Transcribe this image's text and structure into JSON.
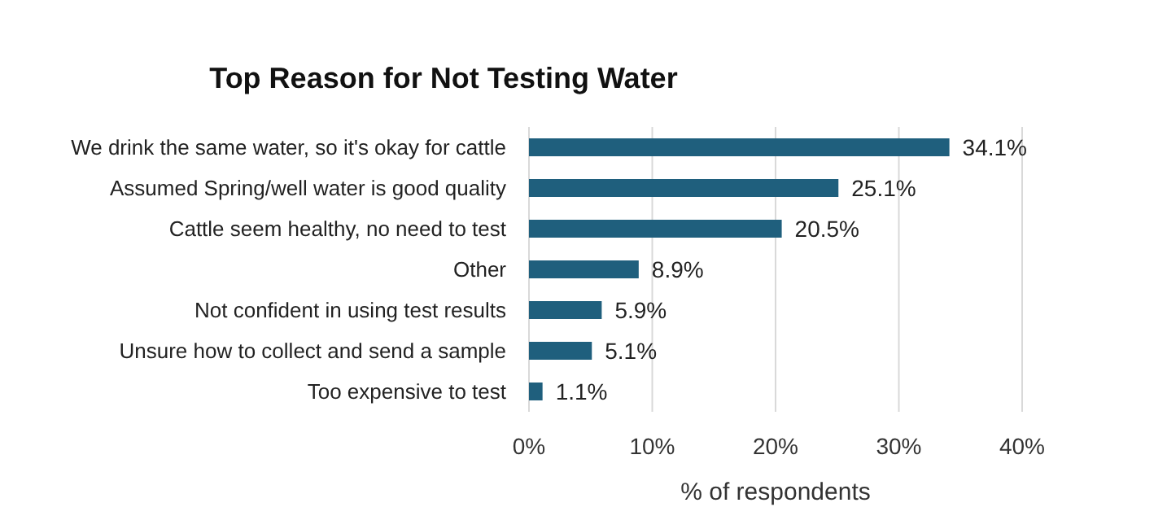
{
  "chart_data": {
    "type": "bar",
    "orientation": "horizontal",
    "title": "Top Reason for Not Testing Water",
    "xlabel": "% of respondents",
    "categories": [
      "We drink the same water, so it's okay for cattle",
      "Assumed Spring/well water is good quality",
      "Cattle seem healthy, no need to test",
      "Other",
      "Not confident in using test results",
      "Unsure how to collect and send a sample",
      "Too expensive to test"
    ],
    "values": [
      34.1,
      25.1,
      20.5,
      8.9,
      5.9,
      5.1,
      1.1
    ],
    "value_labels": [
      "34.1%",
      "25.1%",
      "20.5%",
      "8.9%",
      "5.9%",
      "5.1%",
      "1.1%"
    ],
    "color": "#1f5f7d",
    "xlim": [
      0,
      40
    ],
    "xticks": [
      {
        "value": 0,
        "label": "0%"
      },
      {
        "value": 10,
        "label": "10%"
      },
      {
        "value": 20,
        "label": "20%"
      },
      {
        "value": 30,
        "label": "30%"
      },
      {
        "value": 40,
        "label": "40%"
      }
    ],
    "grid": "x"
  }
}
